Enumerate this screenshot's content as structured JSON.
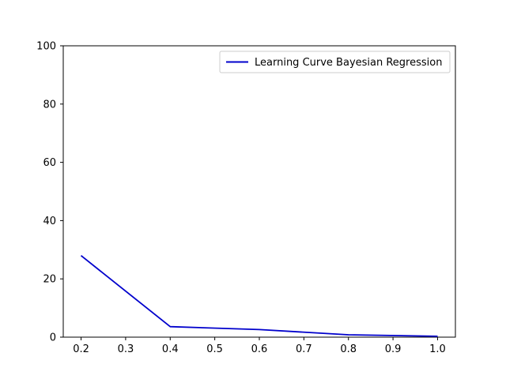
{
  "chart_data": {
    "type": "line",
    "title": "",
    "xlabel": "",
    "ylabel": "",
    "xlim": [
      0.16,
      1.04
    ],
    "ylim": [
      0,
      100
    ],
    "x_ticks": [
      0.2,
      0.3,
      0.4,
      0.5,
      0.6,
      0.7,
      0.8,
      0.9,
      1.0
    ],
    "x_tick_labels": [
      "0.2",
      "0.3",
      "0.4",
      "0.5",
      "0.6",
      "0.7",
      "0.8",
      "0.9",
      "1.0"
    ],
    "y_ticks": [
      0,
      20,
      40,
      60,
      80,
      100
    ],
    "y_tick_labels": [
      "0",
      "20",
      "40",
      "60",
      "80",
      "100"
    ],
    "grid": false,
    "legend_position": "top-right",
    "series": [
      {
        "name": "Learning Curve Bayesian Regression",
        "color": "#0000cc",
        "x": [
          0.2,
          0.4,
          0.6,
          0.8,
          1.0
        ],
        "y": [
          28,
          3.6,
          2.6,
          0.8,
          0.3
        ]
      }
    ]
  }
}
